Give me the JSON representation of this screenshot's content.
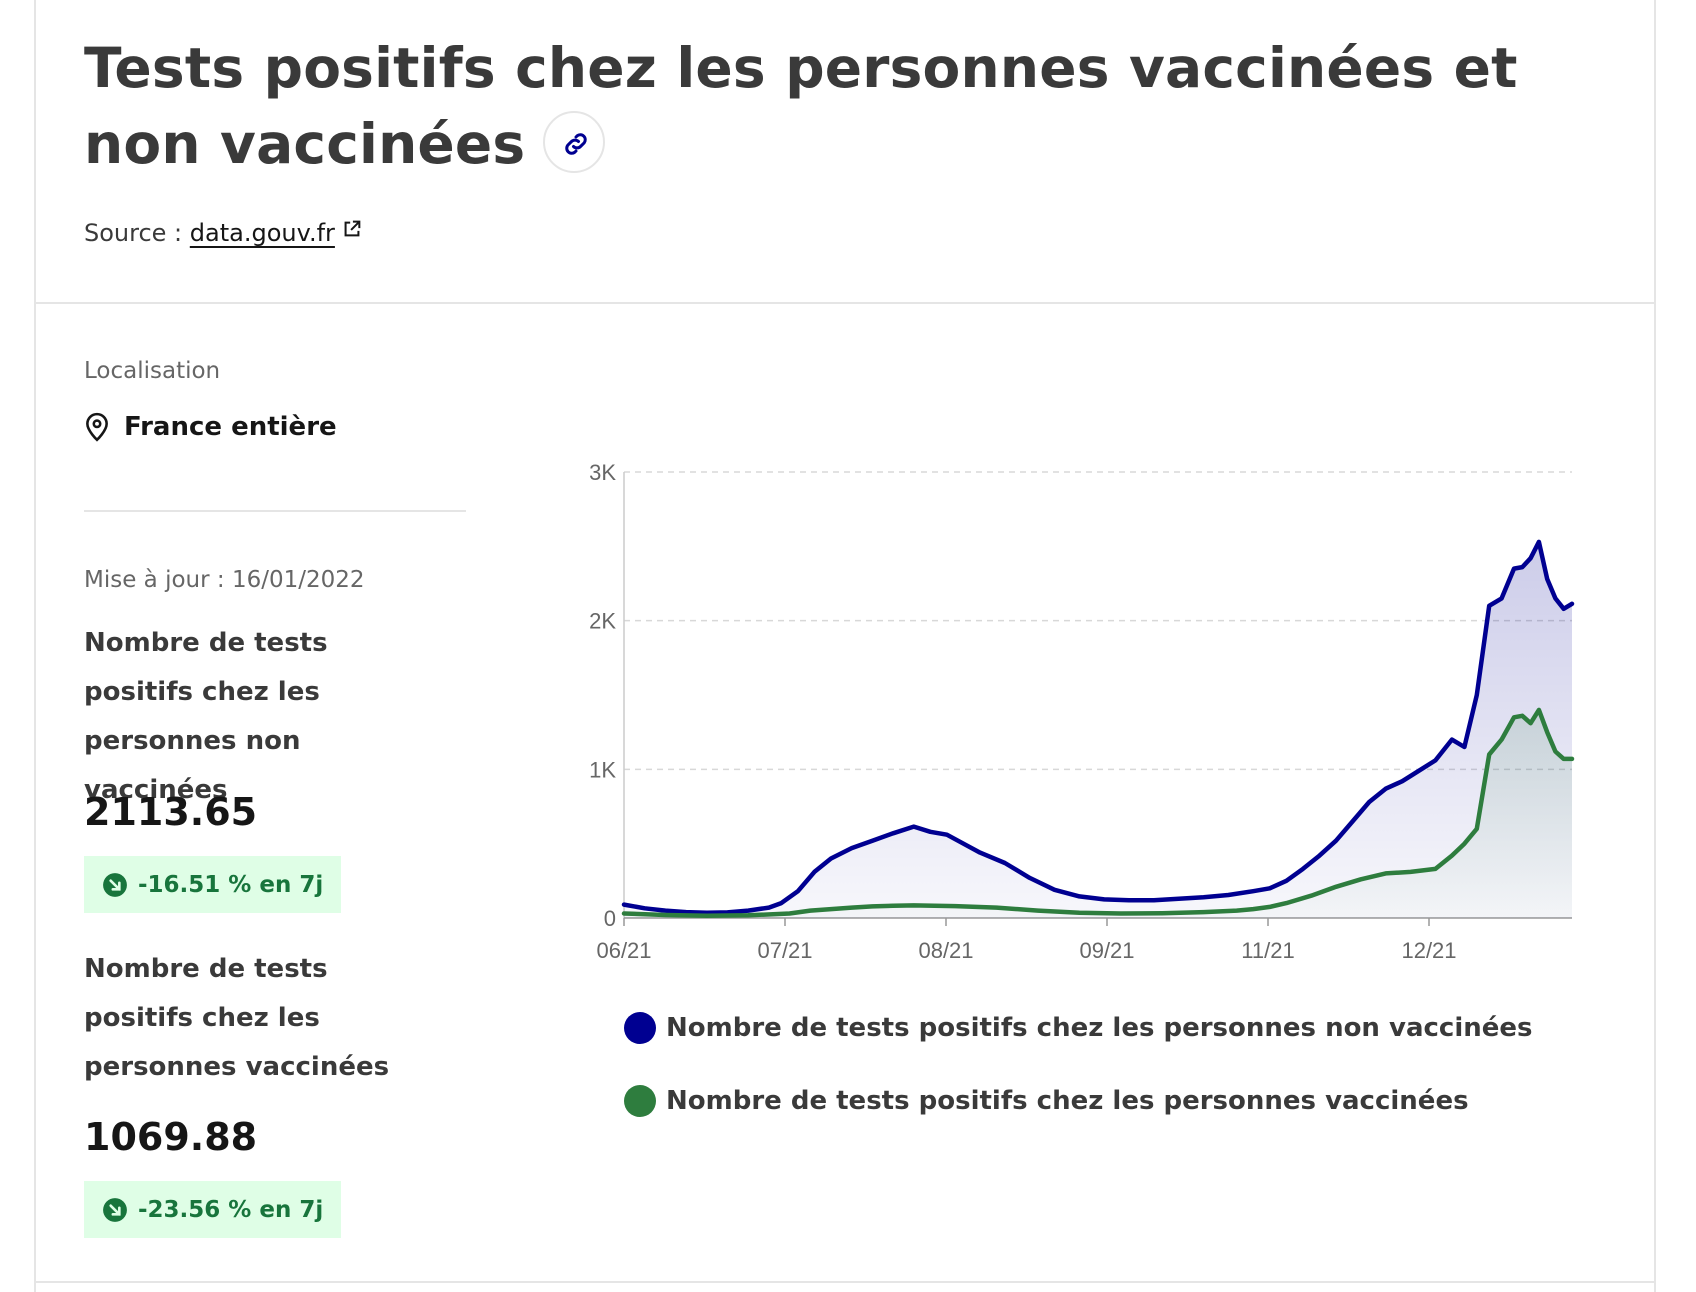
{
  "header": {
    "title": "Tests positifs chez les personnes vaccinées et non vaccinées",
    "source_prefix": "Source :",
    "source_link": "data.gouv.fr"
  },
  "sidebar": {
    "location_label": "Localisation",
    "location_value": "France entière",
    "updated": "Mise à jour : 16/01/2022",
    "kpis": [
      {
        "label": "Nombre de tests positifs chez les personnes non vaccinées",
        "value": "2113.65",
        "change": "-16.51 % en 7j"
      },
      {
        "label": "Nombre de tests positifs chez les personnes vaccinées",
        "value": "1069.88",
        "change": "-23.56 % en 7j"
      }
    ]
  },
  "colors": {
    "unvaccinated": "#000091",
    "vaccinated": "#2e7d3e",
    "badge_bg": "#dffee6",
    "badge_text": "#18753c"
  },
  "icons": {
    "link": "link-icon",
    "external": "external-link-icon",
    "location": "map-pin-icon",
    "trend": "arrow-down-right-icon"
  },
  "chart_data": {
    "type": "area",
    "x_ticks": [
      "06/21",
      "07/21",
      "08/21",
      "09/21",
      "11/21",
      "12/21"
    ],
    "y_ticks": [
      "0",
      "1K",
      "2K",
      "3K"
    ],
    "ylim": [
      0,
      3000
    ],
    "grid": true,
    "legend_position": "bottom",
    "series": [
      {
        "name": "Nombre de tests positifs chez les personnes non vaccinées",
        "color": "#000091",
        "points": [
          [
            0,
            90
          ],
          [
            5,
            65
          ],
          [
            10,
            50
          ],
          [
            15,
            40
          ],
          [
            20,
            35
          ],
          [
            25,
            38
          ],
          [
            30,
            50
          ],
          [
            35,
            70
          ],
          [
            38,
            100
          ],
          [
            42,
            180
          ],
          [
            46,
            310
          ],
          [
            50,
            400
          ],
          [
            55,
            470
          ],
          [
            60,
            520
          ],
          [
            65,
            570
          ],
          [
            70,
            615
          ],
          [
            74,
            580
          ],
          [
            78,
            560
          ],
          [
            82,
            500
          ],
          [
            86,
            440
          ],
          [
            92,
            370
          ],
          [
            98,
            270
          ],
          [
            104,
            190
          ],
          [
            110,
            145
          ],
          [
            116,
            125
          ],
          [
            122,
            120
          ],
          [
            128,
            120
          ],
          [
            134,
            130
          ],
          [
            140,
            140
          ],
          [
            146,
            155
          ],
          [
            152,
            180
          ],
          [
            156,
            200
          ],
          [
            160,
            250
          ],
          [
            164,
            330
          ],
          [
            168,
            420
          ],
          [
            172,
            520
          ],
          [
            176,
            650
          ],
          [
            180,
            780
          ],
          [
            184,
            870
          ],
          [
            188,
            920
          ],
          [
            192,
            990
          ],
          [
            196,
            1060
          ],
          [
            200,
            1200
          ],
          [
            203,
            1150
          ],
          [
            206,
            1500
          ],
          [
            209,
            2100
          ],
          [
            212,
            2150
          ],
          [
            215,
            2350
          ],
          [
            217,
            2360
          ],
          [
            219,
            2420
          ],
          [
            221,
            2530
          ],
          [
            223,
            2280
          ],
          [
            225,
            2150
          ],
          [
            227,
            2080
          ],
          [
            229,
            2113.65
          ]
        ]
      },
      {
        "name": "Nombre de tests positifs chez les personnes vaccinées",
        "color": "#2e7d3e",
        "points": [
          [
            0,
            30
          ],
          [
            10,
            20
          ],
          [
            20,
            15
          ],
          [
            30,
            18
          ],
          [
            40,
            30
          ],
          [
            45,
            50
          ],
          [
            50,
            60
          ],
          [
            55,
            70
          ],
          [
            60,
            78
          ],
          [
            65,
            82
          ],
          [
            70,
            85
          ],
          [
            80,
            80
          ],
          [
            90,
            70
          ],
          [
            100,
            50
          ],
          [
            110,
            35
          ],
          [
            120,
            30
          ],
          [
            130,
            32
          ],
          [
            140,
            40
          ],
          [
            148,
            50
          ],
          [
            152,
            60
          ],
          [
            156,
            75
          ],
          [
            160,
            100
          ],
          [
            166,
            150
          ],
          [
            172,
            210
          ],
          [
            178,
            260
          ],
          [
            184,
            300
          ],
          [
            190,
            310
          ],
          [
            196,
            330
          ],
          [
            200,
            420
          ],
          [
            203,
            500
          ],
          [
            206,
            600
          ],
          [
            209,
            1100
          ],
          [
            212,
            1200
          ],
          [
            215,
            1350
          ],
          [
            217,
            1360
          ],
          [
            219,
            1310
          ],
          [
            221,
            1400
          ],
          [
            223,
            1250
          ],
          [
            225,
            1120
          ],
          [
            227,
            1070
          ],
          [
            229,
            1069.88
          ]
        ]
      }
    ]
  }
}
